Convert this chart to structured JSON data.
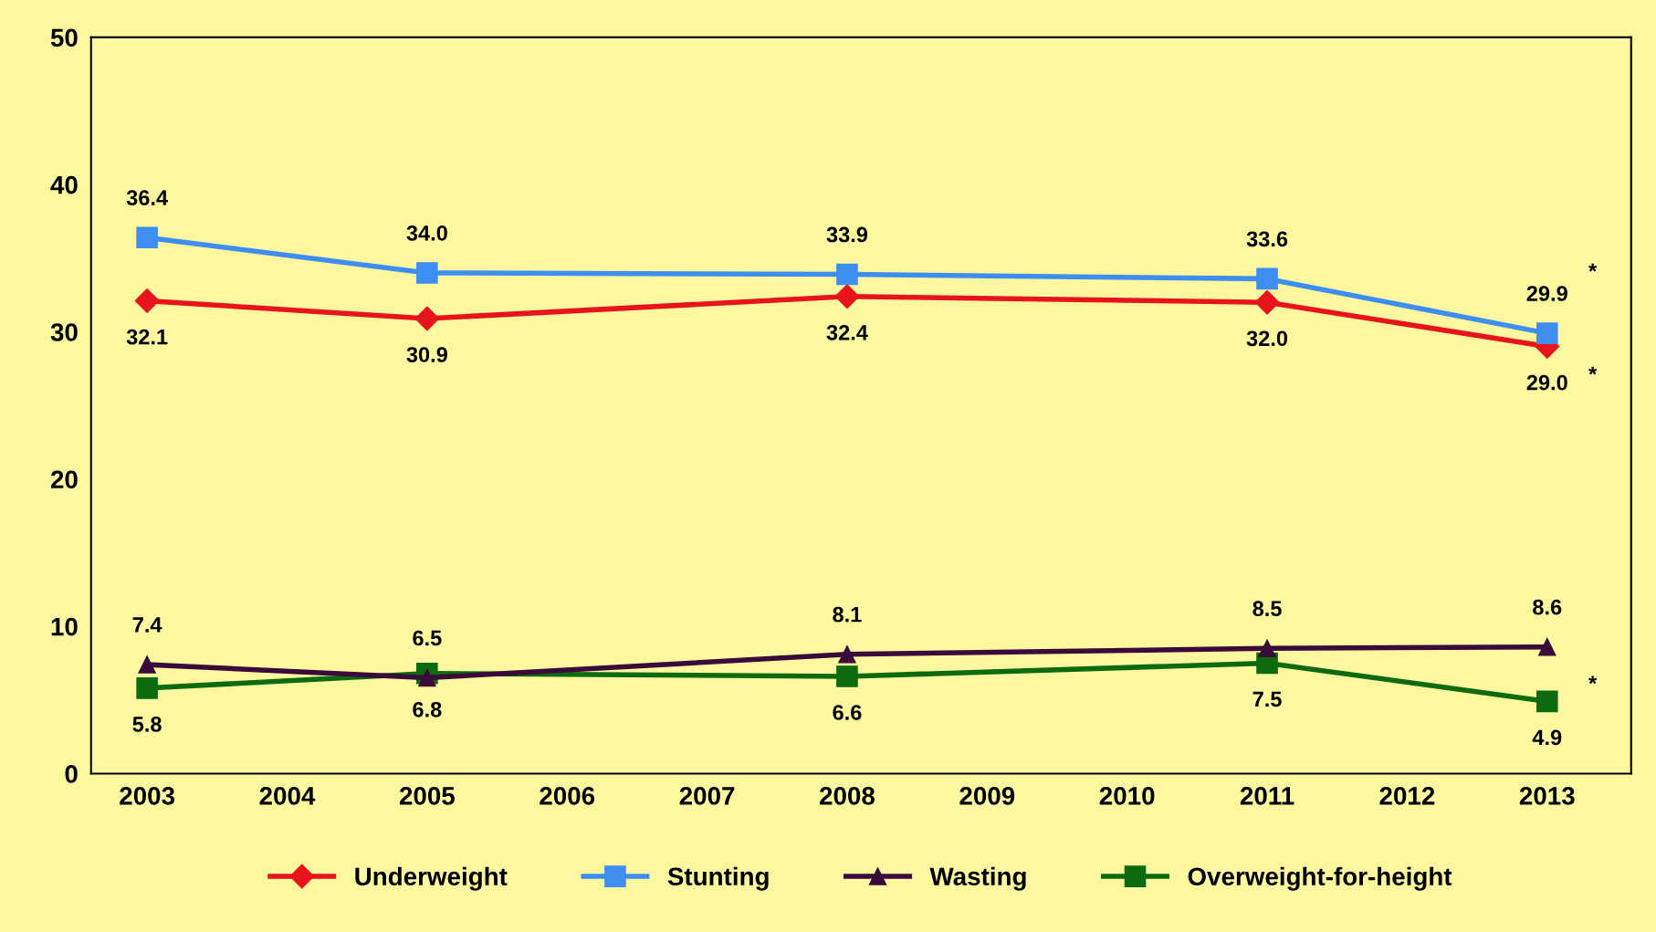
{
  "chart_data": {
    "type": "line",
    "x": [
      2003,
      2005,
      2008,
      2011,
      2013
    ],
    "xlim": [
      2002.6,
      2013.6
    ],
    "xticks": [
      2003,
      2004,
      2005,
      2006,
      2007,
      2008,
      2009,
      2010,
      2011,
      2012,
      2013
    ],
    "ylim": [
      0,
      50
    ],
    "yticks": [
      0,
      10,
      20,
      30,
      40,
      50
    ],
    "series": [
      {
        "name": "Underweight",
        "color": "#e8141b",
        "marker": "diamond",
        "values": [
          32.1,
          30.9,
          32.4,
          32.0,
          29.0
        ],
        "value_labels": [
          "32.1",
          "30.9",
          "32.4",
          "32.0",
          "29.0"
        ]
      },
      {
        "name": "Stunting",
        "color": "#3d8ef0",
        "marker": "square",
        "values": [
          36.4,
          34.0,
          33.9,
          33.6,
          29.9
        ],
        "value_labels": [
          "36.4",
          "34.0",
          "33.9",
          "33.6",
          "29.9"
        ]
      },
      {
        "name": "Wasting",
        "color": "#3a0a3a",
        "marker": "triangle",
        "values": [
          7.4,
          6.5,
          8.1,
          8.5,
          8.6
        ],
        "value_labels": [
          "7.4",
          "6.5",
          "8.1",
          "8.5",
          "8.6"
        ]
      },
      {
        "name": "Overweight-for-height",
        "color": "#0e6a0e",
        "marker": "square",
        "values": [
          5.8,
          6.8,
          6.6,
          7.5,
          4.9
        ],
        "value_labels": [
          "5.8",
          "6.8",
          "6.6",
          "7.5",
          "4.9"
        ]
      }
    ],
    "grid": false,
    "legend": "bottom",
    "line_style": "solid",
    "annotations": [
      "*",
      "*",
      "*"
    ]
  }
}
